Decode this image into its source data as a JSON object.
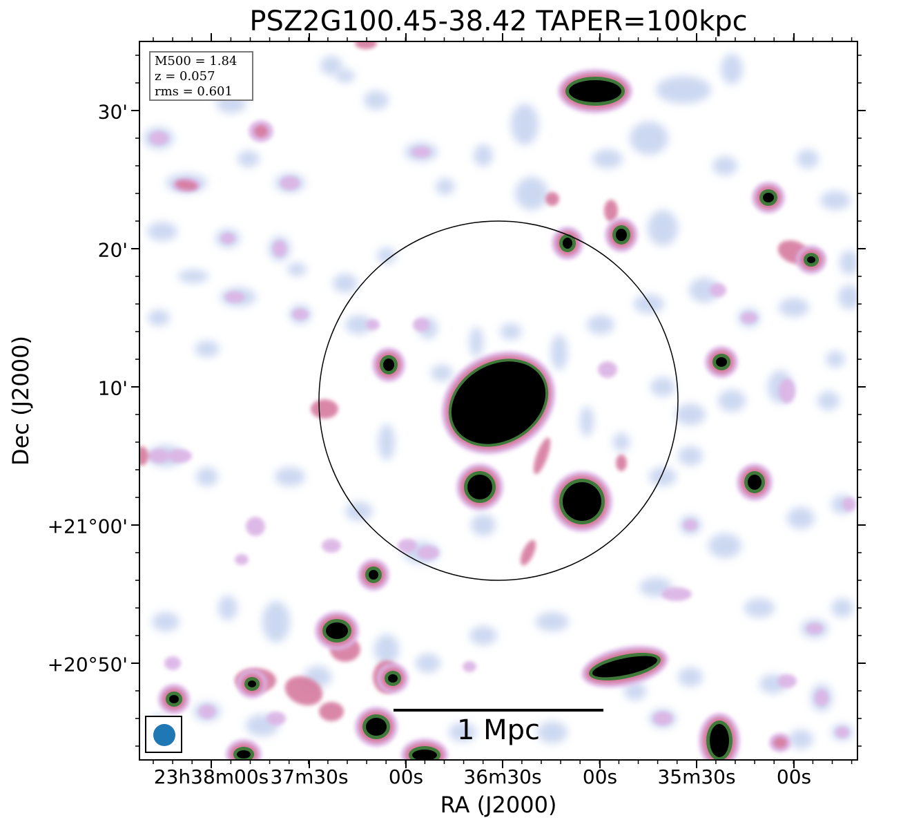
{
  "title": "PSZ2G100.45-38.42 TAPER=100kpc",
  "axes": {
    "xlabel": "RA (J2000)",
    "ylabel": "Dec (J2000)",
    "xticks": [
      "23h38m00s",
      "37m30s",
      "00s",
      "36m30s",
      "00s",
      "35m30s",
      "00s"
    ],
    "yticks": [
      "30'",
      "20'",
      "10'",
      "+21°00'",
      "+20°50'"
    ]
  },
  "info": {
    "line1": "M500 = 1.84",
    "line2": "z = 0.057",
    "line3": "rms = 0.601"
  },
  "scalebar": {
    "label": "1 Mpc"
  },
  "colors": {
    "background": "#ffffff",
    "faint": "#c7d4f0",
    "low": "#dcb6e6",
    "mid": "#d57a9e",
    "high": "#3f7a3a",
    "peak": "#000000",
    "beam": "#1f77b4"
  }
}
